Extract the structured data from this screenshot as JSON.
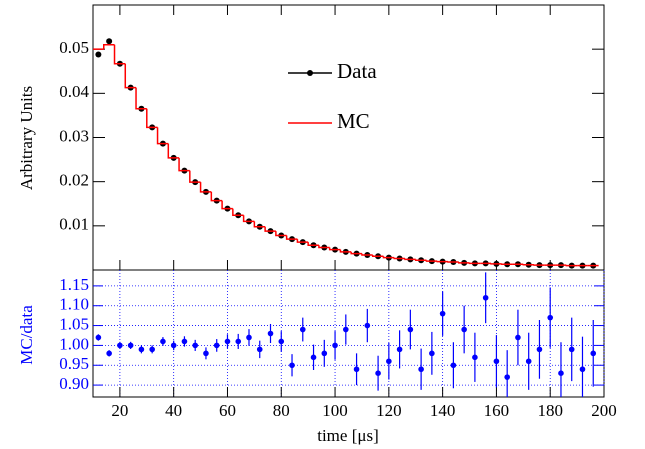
{
  "chart_data": [
    {
      "type": "line",
      "ylabel": "Arbitrary Units",
      "x": [
        12,
        16,
        20,
        24,
        28,
        32,
        36,
        40,
        44,
        48,
        52,
        56,
        60,
        64,
        68,
        72,
        76,
        80,
        84,
        88,
        92,
        96,
        100,
        104,
        108,
        112,
        116,
        120,
        124,
        128,
        132,
        136,
        140,
        144,
        148,
        152,
        156,
        160,
        164,
        168,
        172,
        176,
        180,
        184,
        188,
        192,
        196
      ],
      "series": [
        {
          "name": "Data",
          "color": "#000000",
          "values": [
            0.0488,
            0.0518,
            0.0467,
            0.0413,
            0.0365,
            0.0323,
            0.0286,
            0.0254,
            0.0225,
            0.0199,
            0.0177,
            0.0157,
            0.0139,
            0.0124,
            0.011,
            0.0098,
            0.0088,
            0.0078,
            0.007,
            0.0063,
            0.0056,
            0.0051,
            0.0046,
            0.0041,
            0.0037,
            0.0034,
            0.0031,
            0.0028,
            0.0026,
            0.0024,
            0.0022,
            0.002,
            0.0019,
            0.0018,
            0.0016,
            0.0015,
            0.0015,
            0.0014,
            0.0013,
            0.0013,
            0.0012,
            0.0011,
            0.0011,
            0.0011,
            0.001,
            0.001,
            0.001
          ]
        },
        {
          "name": "MC",
          "color": "#ff0000",
          "values": [
            0.05,
            0.051,
            0.0467,
            0.0413,
            0.0365,
            0.0323,
            0.0286,
            0.0254,
            0.0225,
            0.0199,
            0.0177,
            0.0157,
            0.0139,
            0.0124,
            0.011,
            0.0098,
            0.0088,
            0.0078,
            0.007,
            0.0063,
            0.0056,
            0.0051,
            0.0046,
            0.0041,
            0.0037,
            0.0034,
            0.0031,
            0.0028,
            0.0026,
            0.0024,
            0.0022,
            0.002,
            0.0019,
            0.0018,
            0.0016,
            0.0015,
            0.0015,
            0.0014,
            0.0013,
            0.0013,
            0.0012,
            0.0011,
            0.0011,
            0.0011,
            0.001,
            0.001,
            0.001
          ]
        }
      ],
      "xlim": [
        10,
        200
      ],
      "ylim": [
        0,
        0.06
      ],
      "yticks": [
        0.01,
        0.02,
        0.03,
        0.04,
        0.05
      ]
    },
    {
      "type": "scatter",
      "xlabel": "time [μs]",
      "ylabel": "MC/data",
      "color": "#0000ff",
      "grid": true,
      "x": [
        12,
        16,
        20,
        24,
        28,
        32,
        36,
        40,
        44,
        48,
        52,
        56,
        60,
        64,
        68,
        72,
        76,
        80,
        84,
        88,
        92,
        96,
        100,
        104,
        108,
        112,
        116,
        120,
        124,
        128,
        132,
        136,
        140,
        144,
        148,
        152,
        156,
        160,
        164,
        168,
        172,
        176,
        180,
        184,
        188,
        192,
        196
      ],
      "values": [
        1.02,
        0.98,
        1.0,
        1.0,
        0.99,
        0.99,
        1.01,
        1.0,
        1.01,
        1.0,
        0.98,
        1.0,
        1.01,
        1.01,
        1.02,
        0.99,
        1.03,
        1.01,
        0.95,
        1.04,
        0.97,
        0.98,
        1.0,
        1.04,
        0.94,
        1.05,
        0.93,
        0.96,
        0.99,
        1.04,
        0.94,
        0.98,
        1.08,
        0.95,
        1.04,
        0.97,
        1.12,
        0.96,
        0.92,
        1.02,
        0.96,
        0.99,
        1.07,
        0.93,
        0.99,
        0.94,
        0.98
      ],
      "errors": [
        0.008,
        0.008,
        0.009,
        0.009,
        0.01,
        0.01,
        0.011,
        0.012,
        0.013,
        0.014,
        0.015,
        0.016,
        0.018,
        0.019,
        0.021,
        0.022,
        0.024,
        0.026,
        0.028,
        0.03,
        0.032,
        0.034,
        0.036,
        0.038,
        0.04,
        0.042,
        0.044,
        0.046,
        0.048,
        0.05,
        0.052,
        0.054,
        0.056,
        0.058,
        0.06,
        0.062,
        0.064,
        0.066,
        0.068,
        0.07,
        0.072,
        0.074,
        0.076,
        0.078,
        0.08,
        0.082,
        0.084
      ],
      "xlim": [
        10,
        200
      ],
      "ylim": [
        0.87,
        1.19
      ],
      "xticks": [
        20,
        40,
        60,
        80,
        100,
        120,
        140,
        160,
        180,
        200
      ],
      "yticks": [
        {
          "value": 0.9,
          "label": "0.90"
        },
        {
          "value": 0.95,
          "label": "0.95"
        },
        {
          "value": 1.0,
          "label": "1.00"
        },
        {
          "value": 1.05,
          "label": "1.05"
        },
        {
          "value": 1.1,
          "label": "1.10"
        },
        {
          "value": 1.15,
          "label": "1.15"
        }
      ]
    }
  ]
}
